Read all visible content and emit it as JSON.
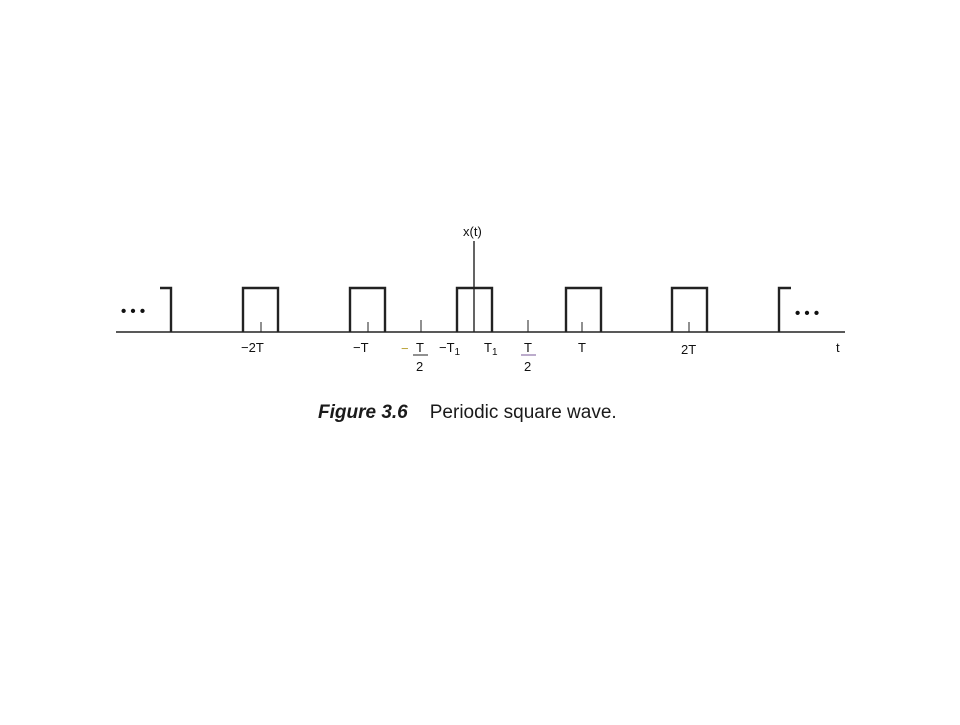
{
  "figure": {
    "y_axis_label": "x(t)",
    "x_axis_label": "t",
    "continuation_left": "• • •",
    "continuation_right": "• • •",
    "tick_labels": {
      "minus_2T": "−2T",
      "minus_T": "−T",
      "minus_half_T_sign": "−",
      "half_T_num": "T",
      "half_T_den": "2",
      "minus_T1": "−T",
      "T1": "T",
      "subscript_1": "1",
      "T": "T",
      "two_T": "2T"
    },
    "caption_number": "Figure 3.6",
    "caption_text": "Periodic square wave."
  }
}
